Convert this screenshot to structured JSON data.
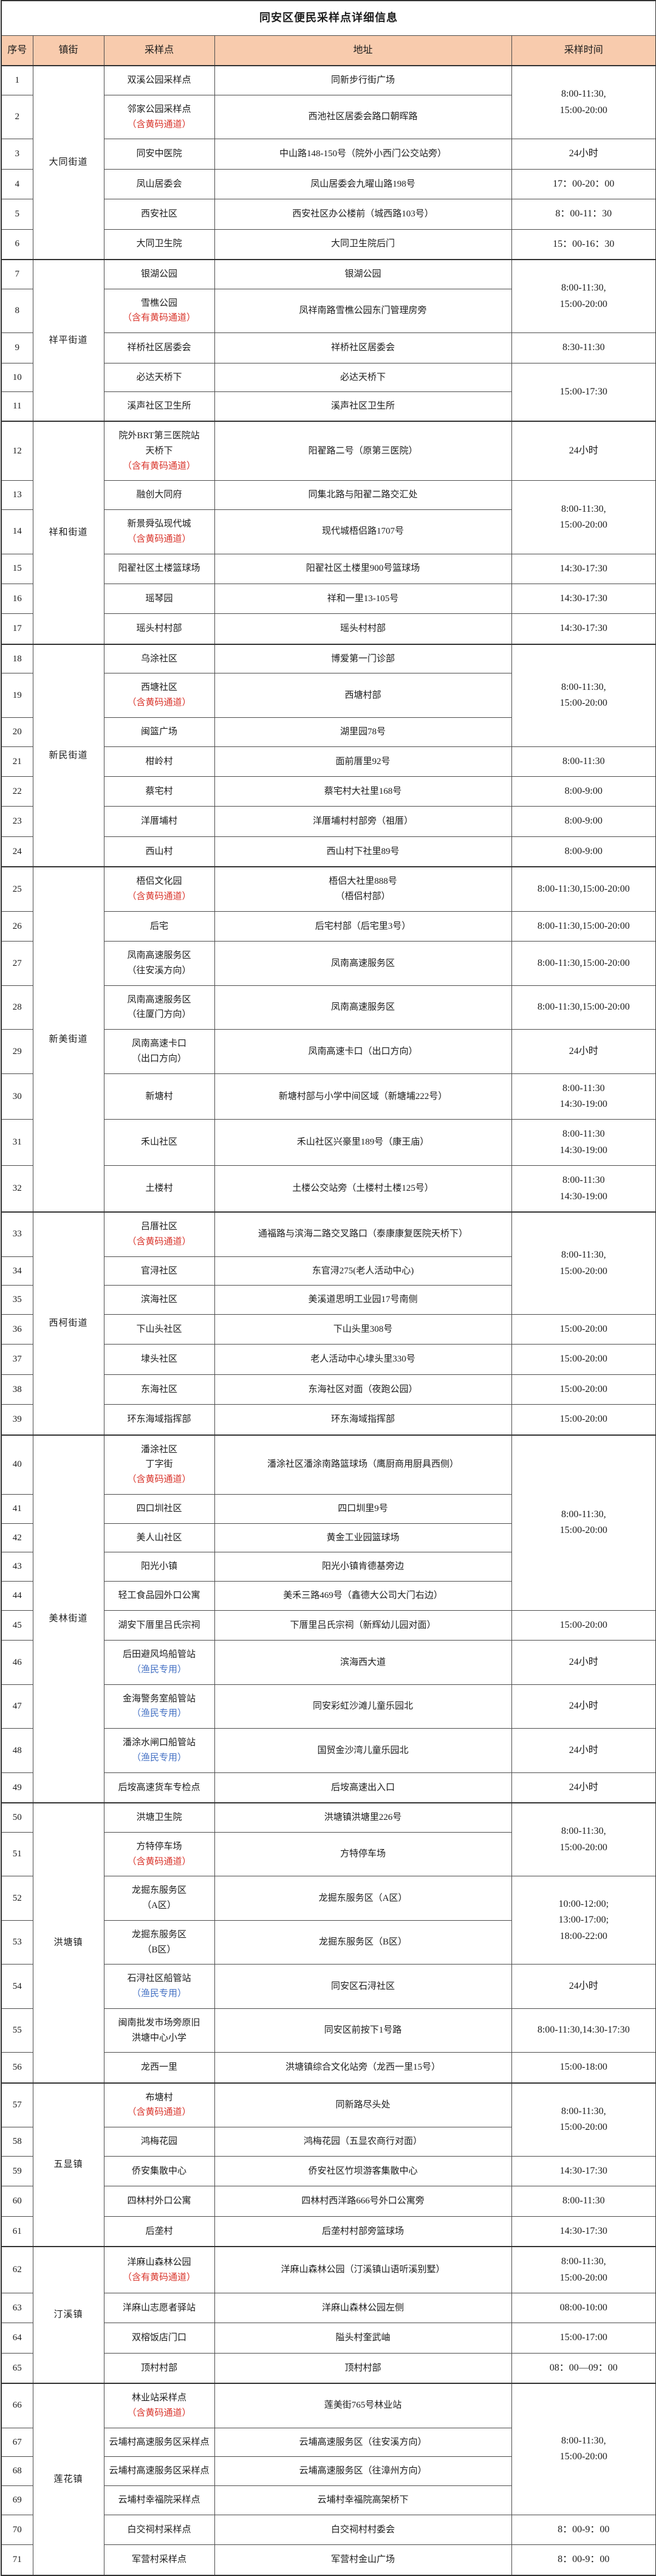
{
  "title": "同安区便民采样点详细信息",
  "columns": [
    "序号",
    "镇街",
    "采样点",
    "地址",
    "采样时间"
  ],
  "colors": {
    "header_bg": "#F8CBAD",
    "yellow_code_note": "#D9342B",
    "fisherman_note": "#4672C4",
    "border": "#4D4D4D"
  },
  "rows": [
    {
      "no": "1",
      "town": {
        "span": 6,
        "label": "大同街道"
      },
      "site": [
        {
          "t": "双溪公园采样点"
        }
      ],
      "addr": [
        {
          "t": "同新步行街广场"
        }
      ],
      "time": {
        "span": 2,
        "lines": [
          "8:00-11:30,",
          "15:00-20:00"
        ]
      }
    },
    {
      "no": "2",
      "site": [
        {
          "t": "邻家公园采样点"
        },
        {
          "t": "（含黄码通道）",
          "c": "red"
        }
      ],
      "addr": [
        {
          "t": "西池社区居委会路口朝晖路"
        }
      ]
    },
    {
      "no": "3",
      "site": [
        {
          "t": "同安中医院"
        }
      ],
      "addr": [
        {
          "t": "中山路148-150号（院外小西门公交站旁）"
        }
      ],
      "time": {
        "lines": [
          "24小时"
        ]
      }
    },
    {
      "no": "4",
      "site": [
        {
          "t": "凤山居委会"
        }
      ],
      "addr": [
        {
          "t": "凤山居委会九曜山路198号"
        }
      ],
      "time": {
        "lines": [
          "17：00-20：00"
        ]
      }
    },
    {
      "no": "5",
      "site": [
        {
          "t": "西安社区"
        }
      ],
      "addr": [
        {
          "t": "西安社区办公楼前（城西路103号）"
        }
      ],
      "time": {
        "lines": [
          "8：00-11：30"
        ]
      }
    },
    {
      "no": "6",
      "site": [
        {
          "t": "大同卫生院"
        }
      ],
      "addr": [
        {
          "t": "大同卫生院后门"
        }
      ],
      "time": {
        "lines": [
          "15：00-16：30"
        ]
      }
    },
    {
      "no": "7",
      "town": {
        "span": 5,
        "label": "祥平街道"
      },
      "site": [
        {
          "t": "银湖公园"
        }
      ],
      "addr": [
        {
          "t": "银湖公园"
        }
      ],
      "time": {
        "span": 2,
        "lines": [
          "8:00-11:30,",
          "15:00-20:00"
        ]
      }
    },
    {
      "no": "8",
      "site": [
        {
          "t": "雪樵公园"
        },
        {
          "t": "（含有黄码通道）",
          "c": "red"
        }
      ],
      "addr": [
        {
          "t": "凤祥南路雪樵公园东门管理房旁"
        }
      ]
    },
    {
      "no": "9",
      "site": [
        {
          "t": "祥桥社区居委会"
        }
      ],
      "addr": [
        {
          "t": "祥桥社区居委会"
        }
      ],
      "time": {
        "lines": [
          "8:30-11:30"
        ]
      }
    },
    {
      "no": "10",
      "site": [
        {
          "t": "必达天桥下"
        }
      ],
      "addr": [
        {
          "t": "必达天桥下"
        }
      ],
      "time": {
        "span": 2,
        "lines": [
          "15:00-17:30"
        ]
      }
    },
    {
      "no": "11",
      "site": [
        {
          "t": "溪声社区卫生所"
        }
      ],
      "addr": [
        {
          "t": "溪声社区卫生所"
        }
      ]
    },
    {
      "no": "12",
      "town": {
        "span": 6,
        "label": "祥和街道"
      },
      "site": [
        {
          "t": "院外BRT第三医院站"
        },
        {
          "t": "天桥下"
        },
        {
          "t": "（含有黄码通道）",
          "c": "red"
        }
      ],
      "addr": [
        {
          "t": "阳翟路二号（原第三医院）"
        }
      ],
      "time": {
        "lines": [
          "24小时"
        ]
      }
    },
    {
      "no": "13",
      "site": [
        {
          "t": "融创大同府"
        }
      ],
      "addr": [
        {
          "t": "同集北路与阳翟二路交汇处"
        }
      ],
      "time": {
        "span": 2,
        "lines": [
          "8:00-11:30,",
          "15:00-20:00"
        ]
      }
    },
    {
      "no": "14",
      "site": [
        {
          "t": "新景舜弘现代城"
        },
        {
          "t": "（含黄码通道）",
          "c": "red"
        }
      ],
      "addr": [
        {
          "t": "现代城梧侣路1707号"
        }
      ]
    },
    {
      "no": "15",
      "site": [
        {
          "t": "阳翟社区土楼篮球场"
        }
      ],
      "addr": [
        {
          "t": "阳翟社区土楼里900号篮球场"
        }
      ],
      "time": {
        "lines": [
          "14:30-17:30"
        ]
      }
    },
    {
      "no": "16",
      "site": [
        {
          "t": "瑶琴园"
        }
      ],
      "addr": [
        {
          "t": "祥和一里13-105号"
        }
      ],
      "time": {
        "lines": [
          "14:30-17:30"
        ]
      }
    },
    {
      "no": "17",
      "site": [
        {
          "t": "瑶头村村部"
        }
      ],
      "addr": [
        {
          "t": "瑶头村村部"
        }
      ],
      "time": {
        "lines": [
          "14:30-17:30"
        ]
      }
    },
    {
      "no": "18",
      "town": {
        "span": 7,
        "label": "新民街道"
      },
      "site": [
        {
          "t": "乌涂社区"
        }
      ],
      "addr": [
        {
          "t": "博爱第一门诊部"
        }
      ],
      "time": {
        "span": 3,
        "lines": [
          "8:00-11:30,",
          "15:00-20:00"
        ]
      }
    },
    {
      "no": "19",
      "site": [
        {
          "t": "西塘社区"
        },
        {
          "t": "（含黄码通道）",
          "c": "red"
        }
      ],
      "addr": [
        {
          "t": "西塘村部"
        }
      ]
    },
    {
      "no": "20",
      "site": [
        {
          "t": "闽篮广场"
        }
      ],
      "addr": [
        {
          "t": "湖里园78号"
        }
      ]
    },
    {
      "no": "21",
      "site": [
        {
          "t": "柑岭村"
        }
      ],
      "addr": [
        {
          "t": "面前厝里92号"
        }
      ],
      "time": {
        "lines": [
          "8:00-11:30"
        ]
      }
    },
    {
      "no": "22",
      "site": [
        {
          "t": "蔡宅村"
        }
      ],
      "addr": [
        {
          "t": "蔡宅村大社里168号"
        }
      ],
      "time": {
        "lines": [
          "8:00-9:00"
        ]
      }
    },
    {
      "no": "23",
      "site": [
        {
          "t": "洋厝埔村"
        }
      ],
      "addr": [
        {
          "t": "洋厝埔村村部旁（祖厝）"
        }
      ],
      "time": {
        "lines": [
          "8:00-9:00"
        ]
      }
    },
    {
      "no": "24",
      "site": [
        {
          "t": "西山村"
        }
      ],
      "addr": [
        {
          "t": "西山村下社里89号"
        }
      ],
      "time": {
        "lines": [
          "8:00-9:00"
        ]
      }
    },
    {
      "no": "25",
      "town": {
        "span": 8,
        "label": "新美街道"
      },
      "site": [
        {
          "t": "梧侣文化园"
        },
        {
          "t": "（含黄码通道）",
          "c": "red"
        }
      ],
      "addr": [
        {
          "t": "梧侣大社里888号"
        },
        {
          "t": "（梧侣村部）"
        }
      ],
      "time": {
        "lines": [
          "8:00-11:30,15:00-20:00"
        ]
      }
    },
    {
      "no": "26",
      "site": [
        {
          "t": "后宅"
        }
      ],
      "addr": [
        {
          "t": "后宅村部（后宅里3号）"
        }
      ],
      "time": {
        "lines": [
          "8:00-11:30,15:00-20:00"
        ]
      }
    },
    {
      "no": "27",
      "site": [
        {
          "t": "凤南高速服务区"
        },
        {
          "t": "（往安溪方向）"
        }
      ],
      "addr": [
        {
          "t": "凤南高速服务区"
        }
      ],
      "time": {
        "lines": [
          "8:00-11:30,15:00-20:00"
        ]
      }
    },
    {
      "no": "28",
      "site": [
        {
          "t": "凤南高速服务区"
        },
        {
          "t": "（往厦门方向）"
        }
      ],
      "addr": [
        {
          "t": "凤南高速服务区"
        }
      ],
      "time": {
        "lines": [
          "8:00-11:30,15:00-20:00"
        ]
      }
    },
    {
      "no": "29",
      "site": [
        {
          "t": "凤南高速卡口"
        },
        {
          "t": "（出口方向）"
        }
      ],
      "addr": [
        {
          "t": "凤南高速卡口（出口方向）"
        }
      ],
      "time": {
        "lines": [
          "24小时"
        ]
      }
    },
    {
      "no": "30",
      "site": [
        {
          "t": "新塘村"
        }
      ],
      "addr": [
        {
          "t": "新塘村部与小学中间区域（新塘埔222号）"
        }
      ],
      "time": {
        "lines": [
          "8:00-11:30",
          "14:30-19:00"
        ]
      }
    },
    {
      "no": "31",
      "site": [
        {
          "t": "禾山社区"
        }
      ],
      "addr": [
        {
          "t": "禾山社区兴豪里189号（康王庙）"
        }
      ],
      "time": {
        "lines": [
          "8:00-11:30",
          "14:30-19:00"
        ]
      }
    },
    {
      "no": "32",
      "site": [
        {
          "t": "土楼村"
        }
      ],
      "addr": [
        {
          "t": "土楼公交站旁（土楼村土楼125号）"
        }
      ],
      "time": {
        "lines": [
          "8:00-11:30",
          "14:30-19:00"
        ]
      }
    },
    {
      "no": "33",
      "town": {
        "span": 7,
        "label": "西柯街道"
      },
      "site": [
        {
          "t": "吕厝社区"
        },
        {
          "t": "（含黄码通道）",
          "c": "red"
        }
      ],
      "addr": [
        {
          "t": "通福路与滨海二路交叉路口（泰康康复医院天桥下）"
        }
      ],
      "time": {
        "span": 3,
        "lines": [
          "8:00-11:30,",
          "15:00-20:00"
        ]
      }
    },
    {
      "no": "34",
      "site": [
        {
          "t": "官浔社区"
        }
      ],
      "addr": [
        {
          "t": "东官浔275(老人活动中心)"
        }
      ]
    },
    {
      "no": "35",
      "site": [
        {
          "t": "滨海社区"
        }
      ],
      "addr": [
        {
          "t": "美溪道思明工业园17号南侧"
        }
      ]
    },
    {
      "no": "36",
      "site": [
        {
          "t": "下山头社区"
        }
      ],
      "addr": [
        {
          "t": "下山头里308号"
        }
      ],
      "time": {
        "lines": [
          "15:00-20:00"
        ]
      }
    },
    {
      "no": "37",
      "site": [
        {
          "t": "埭头社区"
        }
      ],
      "addr": [
        {
          "t": "老人活动中心埭头里330号"
        }
      ],
      "time": {
        "lines": [
          "15:00-20:00"
        ]
      }
    },
    {
      "no": "38",
      "site": [
        {
          "t": "东海社区"
        }
      ],
      "addr": [
        {
          "t": "东海社区对面（夜跑公园）"
        }
      ],
      "time": {
        "lines": [
          "15:00-20:00"
        ]
      }
    },
    {
      "no": "39",
      "site": [
        {
          "t": "环东海域指挥部"
        }
      ],
      "addr": [
        {
          "t": "环东海域指挥部"
        }
      ],
      "time": {
        "lines": [
          "15:00-20:00"
        ]
      }
    },
    {
      "no": "40",
      "town": {
        "span": 10,
        "label": "美林街道"
      },
      "site": [
        {
          "t": "潘涂社区"
        },
        {
          "t": "丁字街"
        },
        {
          "t": "（含黄码通道）",
          "c": "red"
        }
      ],
      "addr": [
        {
          "t": "潘涂社区潘涂南路篮球场（鹰厨商用厨具西侧）"
        }
      ],
      "time": {
        "span": 5,
        "lines": [
          "8:00-11:30,",
          "15:00-20:00"
        ]
      }
    },
    {
      "no": "41",
      "site": [
        {
          "t": "四口圳社区"
        }
      ],
      "addr": [
        {
          "t": "四口圳里9号"
        }
      ]
    },
    {
      "no": "42",
      "site": [
        {
          "t": "美人山社区"
        }
      ],
      "addr": [
        {
          "t": "黄金工业园篮球场"
        }
      ]
    },
    {
      "no": "43",
      "site": [
        {
          "t": "阳光小镇"
        }
      ],
      "addr": [
        {
          "t": "阳光小镇肯德基旁边"
        }
      ]
    },
    {
      "no": "44",
      "site": [
        {
          "t": "轻工食品园外口公寓"
        }
      ],
      "addr": [
        {
          "t": "美禾三路469号（鑫德大公司大门右边）"
        }
      ]
    },
    {
      "no": "45",
      "site": [
        {
          "t": "湖安下厝里吕氏宗祠"
        }
      ],
      "addr": [
        {
          "t": "下厝里吕氏宗祠（新辉幼儿园对面）"
        }
      ],
      "time": {
        "lines": [
          "15:00-20:00"
        ]
      }
    },
    {
      "no": "46",
      "site": [
        {
          "t": "后田避风坞船管站"
        },
        {
          "t": "（渔民专用）",
          "c": "blue"
        }
      ],
      "addr": [
        {
          "t": "滨海西大道"
        }
      ],
      "time": {
        "lines": [
          "24小时"
        ]
      }
    },
    {
      "no": "47",
      "site": [
        {
          "t": "金海警务室船管站"
        },
        {
          "t": "（渔民专用）",
          "c": "blue"
        }
      ],
      "addr": [
        {
          "t": "同安彩虹沙滩儿童乐园北"
        }
      ],
      "time": {
        "lines": [
          "24小时"
        ]
      }
    },
    {
      "no": "48",
      "site": [
        {
          "t": "潘涂水闸口船管站"
        },
        {
          "t": "（渔民专用）",
          "c": "blue"
        }
      ],
      "addr": [
        {
          "t": "国贸金沙湾儿童乐园北"
        }
      ],
      "time": {
        "lines": [
          "24小时"
        ]
      }
    },
    {
      "no": "49",
      "site": [
        {
          "t": "后垵高速货车专检点"
        }
      ],
      "addr": [
        {
          "t": "后垵高速出入口"
        }
      ],
      "time": {
        "lines": [
          "24小时"
        ]
      }
    },
    {
      "no": "50",
      "town": {
        "span": 7,
        "label": "洪塘镇"
      },
      "site": [
        {
          "t": "洪塘卫生院"
        }
      ],
      "addr": [
        {
          "t": "洪塘镇洪塘里226号"
        }
      ],
      "time": {
        "span": 2,
        "lines": [
          "8:00-11:30,",
          "15:00-20:00"
        ]
      }
    },
    {
      "no": "51",
      "site": [
        {
          "t": "方特停车场"
        },
        {
          "t": "（含黄码通道）",
          "c": "red"
        }
      ],
      "addr": [
        {
          "t": "方特停车场"
        }
      ]
    },
    {
      "no": "52",
      "site": [
        {
          "t": "龙掘东服务区"
        },
        {
          "t": "（A区）"
        }
      ],
      "addr": [
        {
          "t": "龙掘东服务区（A区）"
        }
      ],
      "time": {
        "span": 2,
        "lines": [
          "10:00-12:00;",
          "13:00-17:00;",
          "18:00-22:00"
        ]
      }
    },
    {
      "no": "53",
      "site": [
        {
          "t": "龙掘东服务区"
        },
        {
          "t": "（B区）"
        }
      ],
      "addr": [
        {
          "t": "龙掘东服务区（B区）"
        }
      ]
    },
    {
      "no": "54",
      "site": [
        {
          "t": "石浔社区船管站"
        },
        {
          "t": "（渔民专用）",
          "c": "blue"
        }
      ],
      "addr": [
        {
          "t": "同安区石浔社区"
        }
      ],
      "time": {
        "lines": [
          "24小时"
        ]
      }
    },
    {
      "no": "55",
      "site": [
        {
          "t": "闽南批发市场旁原旧"
        },
        {
          "t": "洪塘中心小学"
        }
      ],
      "addr": [
        {
          "t": "同安区前按下1号路"
        }
      ],
      "time": {
        "lines": [
          "8:00-11:30,14:30-17:30"
        ]
      }
    },
    {
      "no": "56",
      "site": [
        {
          "t": "龙西一里"
        }
      ],
      "addr": [
        {
          "t": "洪塘镇综合文化站旁（龙西一里15号）"
        }
      ],
      "time": {
        "lines": [
          "15:00-18:00"
        ]
      }
    },
    {
      "no": "57",
      "town": {
        "span": 5,
        "label": "五显镇"
      },
      "site": [
        {
          "t": "布塘村"
        },
        {
          "t": "（含黄码通道）",
          "c": "red"
        }
      ],
      "addr": [
        {
          "t": "同新路尽头处"
        }
      ],
      "time": {
        "span": 2,
        "lines": [
          "8:00-11:30,",
          "15:00-20:00"
        ]
      }
    },
    {
      "no": "58",
      "site": [
        {
          "t": "鸿梅花园"
        }
      ],
      "addr": [
        {
          "t": "鸿梅花园（五显农商行对面）"
        }
      ]
    },
    {
      "no": "59",
      "site": [
        {
          "t": "侨安集散中心"
        }
      ],
      "addr": [
        {
          "t": "侨安社区竹坝游客集散中心"
        }
      ],
      "time": {
        "lines": [
          "14:30-17:30"
        ]
      }
    },
    {
      "no": "60",
      "site": [
        {
          "t": "四林村外口公寓"
        }
      ],
      "addr": [
        {
          "t": "四林村西洋路666号外口公寓旁"
        }
      ],
      "time": {
        "lines": [
          "8:00-11:30"
        ]
      }
    },
    {
      "no": "61",
      "site": [
        {
          "t": "后垄村"
        }
      ],
      "addr": [
        {
          "t": "后垄村村部旁篮球场"
        }
      ],
      "time": {
        "lines": [
          "14:30-17:30"
        ]
      }
    },
    {
      "no": "62",
      "town": {
        "span": 4,
        "label": "汀溪镇"
      },
      "site": [
        {
          "t": "洋麻山森林公园"
        },
        {
          "t": "（含有黄码通道）",
          "c": "red"
        }
      ],
      "addr": [
        {
          "t": "洋麻山森林公园（汀溪镇山语听溪别墅）"
        }
      ],
      "time": {
        "lines": [
          "8:00-11:30,",
          "15:00-20:00"
        ]
      }
    },
    {
      "no": "63",
      "site": [
        {
          "t": "洋麻山志愿者驿站"
        }
      ],
      "addr": [
        {
          "t": "洋麻山森林公园左侧"
        }
      ],
      "time": {
        "lines": [
          "08:00-10:00"
        ]
      }
    },
    {
      "no": "64",
      "site": [
        {
          "t": "双榕饭店门口"
        }
      ],
      "addr": [
        {
          "t": "隘头村奎武岫"
        }
      ],
      "time": {
        "lines": [
          "15:00-17:00"
        ]
      }
    },
    {
      "no": "65",
      "site": [
        {
          "t": "顶村村部"
        }
      ],
      "addr": [
        {
          "t": "顶村村部"
        }
      ],
      "time": {
        "lines": [
          "08：00—09：00"
        ]
      }
    },
    {
      "no": "66",
      "town": {
        "span": 6,
        "label": "莲花镇"
      },
      "site": [
        {
          "t": "林业站采样点"
        },
        {
          "t": "（含黄码通道）",
          "c": "red"
        }
      ],
      "addr": [
        {
          "t": "莲美街765号林业站"
        }
      ],
      "time": {
        "span": 4,
        "lines": [
          "8:00-11:30,",
          "15:00-20:00"
        ]
      }
    },
    {
      "no": "67",
      "site": [
        {
          "t": "云埔村高速服务区采样点"
        }
      ],
      "addr": [
        {
          "t": "云埔高速服务区（往安溪方向）"
        }
      ]
    },
    {
      "no": "68",
      "site": [
        {
          "t": "云埔村高速服务区采样点"
        }
      ],
      "addr": [
        {
          "t": "云埔高速服务区（往漳州方向）"
        }
      ]
    },
    {
      "no": "69",
      "site": [
        {
          "t": "云埔村幸福院采样点"
        }
      ],
      "addr": [
        {
          "t": "云埔村幸福院高架桥下"
        }
      ]
    },
    {
      "no": "70",
      "site": [
        {
          "t": "白交祠村采样点"
        }
      ],
      "addr": [
        {
          "t": "白交祠村村委会"
        }
      ],
      "time": {
        "lines": [
          "8：00-9：00"
        ]
      }
    },
    {
      "no": "71",
      "site": [
        {
          "t": "军营村采样点"
        }
      ],
      "addr": [
        {
          "t": "军营村金山广场"
        }
      ],
      "time": {
        "lines": [
          "8：00-9：00"
        ]
      }
    }
  ]
}
